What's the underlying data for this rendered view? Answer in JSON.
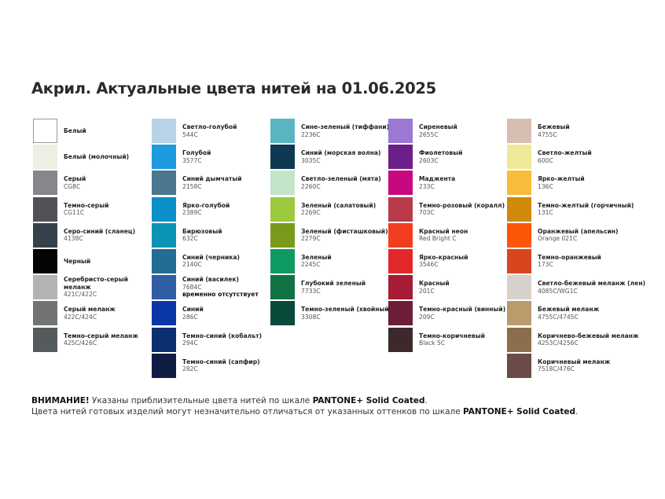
{
  "title": "Акрил. Актуальные цвета нитей на 01.06.2025",
  "columns": [
    [
      {
        "name": "Белый",
        "code": "",
        "color": "#ffffff"
      },
      {
        "name": "Белый (молочный)",
        "code": "",
        "color": "#eeeee2"
      },
      {
        "name": "Серый",
        "code": "CG8C",
        "color": "#86878b"
      },
      {
        "name": "Темно-серый",
        "code": "CG11C",
        "color": "#505256"
      },
      {
        "name": "Серо-синий (сланец)",
        "code": "4138C",
        "color": "#36424b"
      },
      {
        "name": "Черный",
        "code": "",
        "color": "#050505"
      },
      {
        "name": "Серебристо-серый меланж",
        "code": "421C/422C",
        "color": "#b2b3b3"
      },
      {
        "name": "Серый меланж",
        "code": "422C/424C",
        "color": "#727373"
      },
      {
        "name": "Темно-серый меланж",
        "code": "425C/426C",
        "color": "#555a5d"
      }
    ],
    [
      {
        "name": "Светло-голубой",
        "code": "544C",
        "color": "#b9d3e6"
      },
      {
        "name": "Голубой",
        "code": "3577C",
        "color": "#1e9be0"
      },
      {
        "name": "Синий дымчатый",
        "code": "2158C",
        "color": "#4b7690"
      },
      {
        "name": "Ярко-голубой",
        "code": "2389C",
        "color": "#0a8fc8"
      },
      {
        "name": "Бирюзовый",
        "code": "632C",
        "color": "#0a93b5"
      },
      {
        "name": "Синий (черника)",
        "code": "2140C",
        "color": "#236c94"
      },
      {
        "name": "Синий (василек)",
        "code": "7684C",
        "color": "#2f5ea4",
        "note": "временно отсутствует"
      },
      {
        "name": "Синий",
        "code": "286C",
        "color": "#0a36a8"
      },
      {
        "name": "Темно-синий (кобальт)",
        "code": "294C",
        "color": "#0c2f6f"
      },
      {
        "name": "Темно-синий (сапфир)",
        "code": "282C",
        "color": "#111c45"
      }
    ],
    [
      {
        "name": "Сине-зеленый (тиффани)",
        "code": "2236C",
        "color": "#5bb4c1"
      },
      {
        "name": "Синий (морская волна)",
        "code": "3035C",
        "color": "#0d3a52"
      },
      {
        "name": "Светло-зеленый (мята)",
        "code": "2260C",
        "color": "#c4e4c8"
      },
      {
        "name": "Зеленый (салатовый)",
        "code": "2269C",
        "color": "#9cc93e"
      },
      {
        "name": "Зеленый (фисташковый)",
        "code": "2279C",
        "color": "#779a1a"
      },
      {
        "name": "Зеленый",
        "code": "2245C",
        "color": "#0f9a63"
      },
      {
        "name": "Глубокий зеленый",
        "code": "7733C",
        "color": "#127345"
      },
      {
        "name": "Темно-зеленый (хвойный)",
        "code": "3308C",
        "color": "#0a4a3a"
      }
    ],
    [
      {
        "name": "Сиреневый",
        "code": "2655C",
        "color": "#9b78d3"
      },
      {
        "name": "Фиолетовый",
        "code": "2603C",
        "color": "#6c1f88"
      },
      {
        "name": "Маджента",
        "code": "233C",
        "color": "#c9077f"
      },
      {
        "name": "Темно-розовый (коралл)",
        "code": "703C",
        "color": "#b93a4a"
      },
      {
        "name": "Красный неон",
        "code": "Red Bright C",
        "color": "#f23d1e"
      },
      {
        "name": "Ярко-красный",
        "code": "3546C",
        "color": "#e2282a"
      },
      {
        "name": "Красный",
        "code": "201C",
        "color": "#a61c34"
      },
      {
        "name": "Темно-красный (винный)",
        "code": "209C",
        "color": "#6c1d38"
      },
      {
        "name": "Темно-коричневый",
        "code": "Black 5C",
        "color": "#3d282c"
      }
    ],
    [
      {
        "name": "Бежевый",
        "code": "4755C",
        "color": "#d6bfb2"
      },
      {
        "name": "Светло-желтый",
        "code": "600C",
        "color": "#eeea9a"
      },
      {
        "name": "Ярко-желтый",
        "code": "136C",
        "color": "#f8bb3a"
      },
      {
        "name": "Темно-желтый (горчичный)",
        "code": "131C",
        "color": "#cf8a0c"
      },
      {
        "name": "Оранжевый (апельсин)",
        "code": "Orange 021C",
        "color": "#fd5608"
      },
      {
        "name": "Темно-оранжевый",
        "code": "173C",
        "color": "#d8461f"
      },
      {
        "name": "Светло-бежевый меланж (лен)",
        "code": "4085C/WG1C",
        "color": "#d6d1cb"
      },
      {
        "name": "Бежевый меланж",
        "code": "4755C/4745C",
        "color": "#bb9a6b"
      },
      {
        "name": "Коричнево-бежевый меланж",
        "code": "4253C/4256C",
        "color": "#8c6d4c"
      },
      {
        "name": "Коричневый меланж",
        "code": "7518C/476C",
        "color": "#6b4c46"
      }
    ]
  ],
  "footer": {
    "line1_bold": "ВНИМАНИЕ!",
    "line1_text": " Указаны приблизительные цвета нитей по шкале ",
    "line1_brand": "PANTONE+ Solid Coated",
    "line1_end": ".",
    "line2_text": "Цвета нитей готовых изделий могут незначительно отличаться от указанных оттенков по шкале ",
    "line2_brand": "PANTONE+ Solid Coated",
    "line2_end": "."
  }
}
